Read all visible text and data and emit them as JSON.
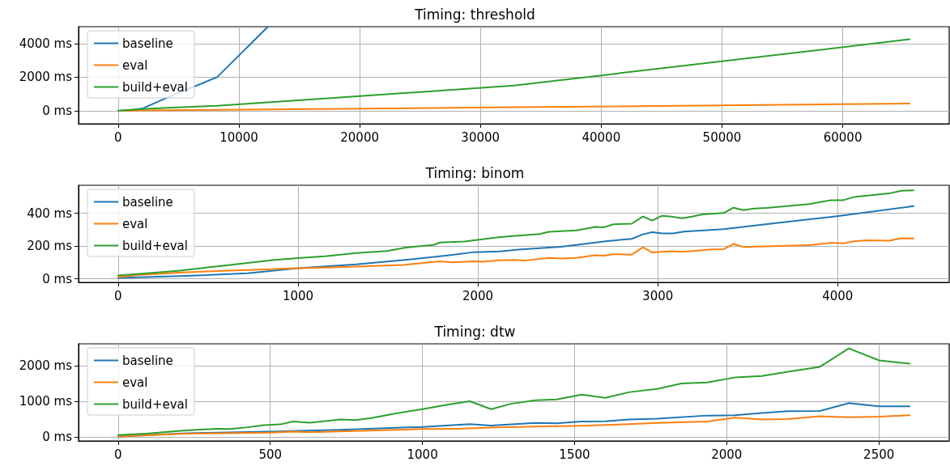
{
  "chart_data": [
    {
      "type": "line",
      "title": "Timing: threshold",
      "xlim": [
        -3277,
        68813
      ],
      "xticks": [
        0,
        10000,
        20000,
        30000,
        40000,
        50000,
        60000
      ],
      "ylim": [
        -770,
        5000
      ],
      "yticks": [
        {
          "value": 0,
          "label": "0 ms"
        },
        {
          "value": 2000,
          "label": "2000 ms"
        },
        {
          "value": 4000,
          "label": "4000 ms"
        }
      ],
      "grid": true,
      "legend": "top left",
      "series": [
        {
          "name": "baseline",
          "color": "#1f77b4",
          "x": [
            0,
            1024,
            2048,
            4096,
            8192,
            12400
          ],
          "values": [
            0,
            50,
            150,
            800,
            2000,
            5000
          ]
        },
        {
          "name": "eval",
          "color": "#ff7f0e",
          "x": [
            0,
            1024,
            2048,
            4096,
            8192,
            16384,
            32768,
            65536
          ],
          "values": [
            0,
            10,
            20,
            30,
            60,
            110,
            210,
            430
          ]
        },
        {
          "name": "build+eval",
          "color": "#2ca02c",
          "x": [
            0,
            1024,
            2048,
            4096,
            8192,
            16384,
            32768,
            65536
          ],
          "values": [
            0,
            60,
            110,
            180,
            300,
            700,
            1500,
            4250
          ]
        }
      ]
    },
    {
      "type": "line",
      "title": "Timing: binom",
      "xlim": [
        -220,
        4620
      ],
      "xticks": [
        0,
        1000,
        2000,
        3000,
        4000
      ],
      "ylim": [
        -22,
        572
      ],
      "yticks": [
        {
          "value": 0,
          "label": "0 ms"
        },
        {
          "value": 200,
          "label": "200 ms"
        },
        {
          "value": 400,
          "label": "400 ms"
        }
      ],
      "grid": true,
      "legend": "top left",
      "series": [
        {
          "name": "baseline",
          "color": "#1f77b4",
          "x": [
            0,
            377,
            721,
            1000,
            1324,
            1583,
            1842,
            1978,
            2123,
            2225,
            2463,
            2719,
            2855,
            2918,
            2969,
            3026,
            3085,
            3145,
            3366,
            3656,
            3997,
            4422
          ],
          "values": [
            5,
            17,
            34,
            65,
            88,
            114,
            144,
            163,
            167,
            178,
            196,
            231,
            244,
            272,
            285,
            278,
            278,
            289,
            304,
            341,
            383,
            444
          ]
        },
        {
          "name": "eval",
          "color": "#ff7f0e",
          "x": [
            0,
            119,
            360,
            721,
            1000,
            1193,
            1583,
            1788,
            1857,
            1978,
            2029,
            2114,
            2208,
            2259,
            2395,
            2463,
            2549,
            2651,
            2702,
            2753,
            2855,
            2918,
            2969,
            3077,
            3136,
            3196,
            3298,
            3366,
            3421,
            3477,
            3605,
            3843,
            3963,
            4031,
            4099,
            4167,
            4286,
            4354,
            4422
          ],
          "values": [
            10,
            24,
            39,
            54,
            65,
            69,
            84,
            107,
            101,
            107,
            104,
            113,
            115,
            111,
            128,
            124,
            128,
            144,
            141,
            150,
            148,
            193,
            161,
            169,
            165,
            170,
            180,
            181,
            213,
            194,
            198,
            206,
            220,
            217,
            230,
            235,
            233,
            248,
            246
          ]
        },
        {
          "name": "build+eval",
          "color": "#2ca02c",
          "x": [
            0,
            205,
            343,
            463,
            583,
            721,
            859,
            1000,
            1151,
            1324,
            1496,
            1599,
            1754,
            1788,
            1926,
            2114,
            2208,
            2344,
            2395,
            2549,
            2651,
            2702,
            2753,
            2855,
            2918,
            2969,
            3022,
            3077,
            3136,
            3196,
            3247,
            3366,
            3421,
            3477,
            3537,
            3605,
            3843,
            3963,
            4031,
            4099,
            4286,
            4354,
            4422
          ],
          "values": [
            20,
            37,
            50,
            65,
            80,
            97,
            114,
            127,
            138,
            157,
            170,
            191,
            207,
            222,
            228,
            254,
            263,
            274,
            287,
            296,
            317,
            315,
            333,
            337,
            381,
            356,
            385,
            380,
            370,
            381,
            394,
            402,
            435,
            420,
            430,
            433,
            457,
            481,
            481,
            502,
            522,
            539,
            541
          ]
        }
      ]
    },
    {
      "type": "line",
      "title": "Timing: dtw",
      "xlim": [
        -130,
        2731
      ],
      "xticks": [
        0,
        500,
        1000,
        1500,
        2000,
        2500
      ],
      "ylim": [
        -114,
        2617
      ],
      "yticks": [
        {
          "value": 0,
          "label": "0 ms"
        },
        {
          "value": 1000,
          "label": "1000 ms"
        },
        {
          "value": 2000,
          "label": "2000 ms"
        }
      ],
      "grid": true,
      "legend": "top left",
      "series": [
        {
          "name": "baseline",
          "color": "#1f77b4",
          "x": [
            0,
            225,
            498,
            731,
            1000,
            1156,
            1226,
            1371,
            1441,
            1523,
            1601,
            1681,
            1771,
            1936,
            2026,
            2116,
            2201,
            2306,
            2401,
            2501,
            2601
          ],
          "values": [
            10,
            100,
            150,
            200,
            280,
            360,
            320,
            390,
            380,
            430,
            440,
            490,
            510,
            600,
            610,
            670,
            720,
            730,
            950,
            860,
            860
          ]
        },
        {
          "name": "eval",
          "color": "#ff7f0e",
          "x": [
            0,
            225,
            498,
            574,
            630,
            1000,
            1115,
            1226,
            1371,
            1523,
            1681,
            1771,
            1936,
            2026,
            2116,
            2201,
            2306,
            2401,
            2501,
            2601
          ],
          "values": [
            10,
            90,
            120,
            150,
            130,
            220,
            230,
            260,
            290,
            310,
            360,
            390,
            430,
            540,
            490,
            500,
            580,
            550,
            570,
            610
          ]
        },
        {
          "name": "build+eval",
          "color": "#2ca02c",
          "x": [
            0,
            93,
            204,
            326,
            366,
            427,
            478,
            533,
            574,
            630,
            731,
            781,
            832,
            913,
            1000,
            1085,
            1156,
            1226,
            1291,
            1371,
            1441,
            1523,
            1601,
            1681,
            1771,
            1851,
            1936,
            2026,
            2116,
            2201,
            2306,
            2401,
            2501,
            2601
          ],
          "values": [
            50,
            90,
            170,
            230,
            220,
            270,
            330,
            350,
            430,
            400,
            490,
            470,
            530,
            660,
            780,
            910,
            1000,
            780,
            930,
            1030,
            1050,
            1190,
            1100,
            1260,
            1350,
            1500,
            1530,
            1670,
            1710,
            1830,
            1970,
            2490,
            2150,
            2060
          ]
        }
      ]
    }
  ]
}
